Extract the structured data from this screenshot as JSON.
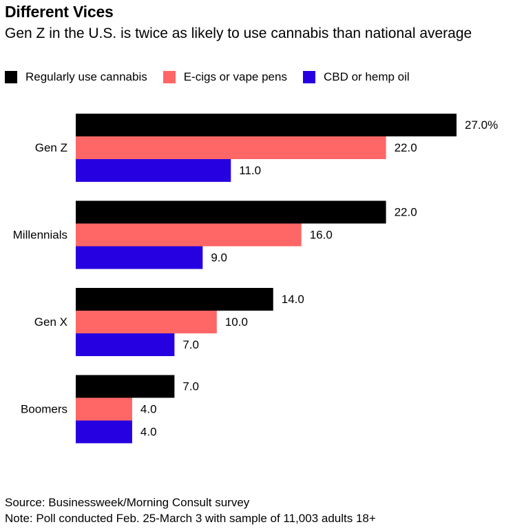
{
  "title": "Different Vices",
  "subtitle": "Gen Z in the U.S. is twice as likely to use cannabis than national average",
  "legend": [
    {
      "label": "Regularly use cannabis",
      "color": "#000000"
    },
    {
      "label": "E-cigs or vape pens",
      "color": "#ff6666"
    },
    {
      "label": "CBD or hemp oil",
      "color": "#2600e0"
    }
  ],
  "chart_data": {
    "type": "bar",
    "orientation": "horizontal",
    "categories": [
      "Gen Z",
      "Millennials",
      "Gen X",
      "Boomers"
    ],
    "series": [
      {
        "name": "Regularly use cannabis",
        "color": "#000000",
        "values": [
          27.0,
          22.0,
          14.0,
          7.0
        ],
        "labels": [
          "27.0%",
          "22.0",
          "14.0",
          "7.0"
        ]
      },
      {
        "name": "E-cigs or vape pens",
        "color": "#ff6666",
        "values": [
          22.0,
          16.0,
          10.0,
          4.0
        ],
        "labels": [
          "22.0",
          "16.0",
          "10.0",
          "4.0"
        ]
      },
      {
        "name": "CBD or hemp oil",
        "color": "#2600e0",
        "values": [
          11.0,
          9.0,
          7.0,
          4.0
        ],
        "labels": [
          "11.0",
          "9.0",
          "7.0",
          "4.0"
        ]
      }
    ],
    "xlim": [
      0,
      27
    ],
    "unit": "%",
    "grid": false,
    "legend_position": "top-left"
  },
  "footer": {
    "source": "Source: Businessweek/Morning Consult survey",
    "note": "Note: Poll conducted Feb. 25-March 3 with sample of 11,003 adults 18+"
  }
}
